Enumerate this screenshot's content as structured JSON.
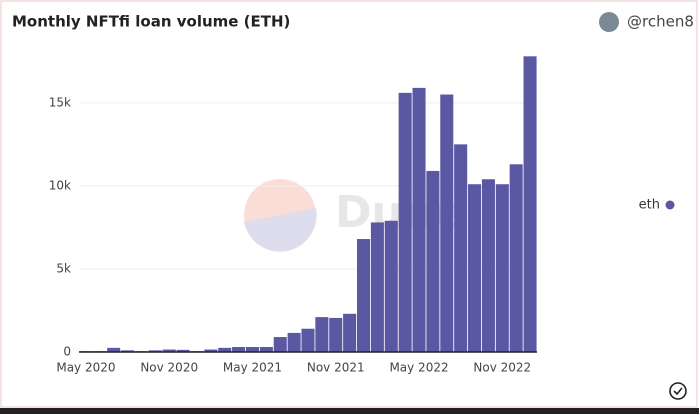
{
  "chart_data": {
    "type": "bar",
    "title": "Monthly NFTfi loan volume (ETH)",
    "author": "@rchen8",
    "watermark": "Dune",
    "categories": [
      "May 2020",
      null,
      null,
      null,
      null,
      null,
      "Nov 2020",
      null,
      null,
      null,
      null,
      null,
      "May 2021",
      null,
      null,
      null,
      null,
      null,
      "Nov 2021",
      null,
      null,
      null,
      null,
      null,
      "May 2022",
      null,
      null,
      null,
      null,
      null,
      "Nov 2022",
      null,
      null
    ],
    "series": [
      {
        "name": "eth",
        "color": "#5a57a3",
        "values": [
          50,
          50,
          250,
          100,
          50,
          100,
          150,
          130,
          50,
          150,
          250,
          300,
          300,
          300,
          900,
          1150,
          1400,
          2100,
          2050,
          2300,
          6800,
          7800,
          7900,
          15600,
          15900,
          10900,
          15500,
          12500,
          10100,
          10400,
          10100,
          11300,
          17800
        ]
      }
    ],
    "ylim": [
      0,
      18000
    ],
    "yticks": [
      0,
      {
        "value": 5000,
        "label": "5k"
      },
      {
        "value": 10000,
        "label": "10k"
      },
      {
        "value": 15000,
        "label": "15k"
      }
    ],
    "grid": true,
    "legend": "right"
  }
}
